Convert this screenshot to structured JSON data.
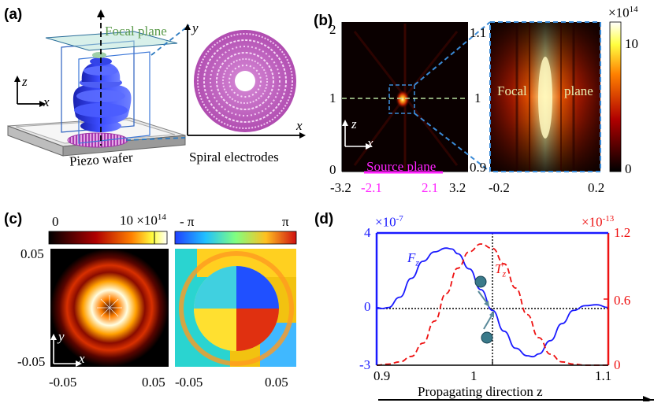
{
  "figure": {
    "panel_labels": [
      "(a)",
      "(b)",
      "(c)",
      "(d)"
    ]
  },
  "panel_a": {
    "focal_plane_label": "Focal plane",
    "wafer_label": "Piezo wafer",
    "electrodes_label": "Spiral electrodes",
    "axis_z": "z",
    "axis_x": "x",
    "axis_y": "y",
    "inset_axis_x": "x",
    "colors": {
      "beam": "#2f3cf5",
      "electrodes": "#c060c0",
      "plane": "#9fd5c8"
    }
  },
  "panel_b": {
    "colorbar_title": "×10",
    "colorbar_exp": "14",
    "colorbar_ticks": [
      "10",
      "0"
    ],
    "left_y_ticks": [
      "2",
      "1",
      "0"
    ],
    "right_y_ticks": [
      "1.1",
      "1",
      "0.9"
    ],
    "left_x_ticks": [
      "-3.2",
      "-2.1",
      "2.1",
      "3.2"
    ],
    "right_x_ticks": [
      "-0.2",
      "0.2"
    ],
    "source_plane_label": "Source plane",
    "focal_label_1": "Focal",
    "focal_label_2": "plane",
    "axis_z": "z",
    "axis_x": "x",
    "colors": {
      "source": "#ff22ff",
      "focal_line": "#b8e0a0",
      "zoom_box": "#3a8ad6"
    }
  },
  "panel_c": {
    "left_colorbar_min": "0",
    "left_colorbar_max": "10 ×10",
    "left_colorbar_exp": "14",
    "right_colorbar_min": "- π",
    "right_colorbar_max": "π",
    "y_ticks": [
      "0.05",
      "-0.05"
    ],
    "left_x_ticks": [
      "-0.05",
      "0.05"
    ],
    "right_x_ticks": [
      "-0.05",
      "0.05"
    ],
    "axis_y": "y",
    "axis_x": "x"
  },
  "chart_data": {
    "type": "line",
    "title": "",
    "xlabel": "Propagating direction z",
    "x_ticks": [
      "0.9",
      "1",
      "1.1"
    ],
    "xlim": [
      0.9,
      1.1
    ],
    "left_axis": {
      "scale_label": "×10",
      "scale_exp": "-7",
      "ticks": [
        "4",
        "0",
        "-3"
      ],
      "ylim": [
        -3,
        4
      ],
      "color": "#1a1aff"
    },
    "right_axis": {
      "scale_label": "×10",
      "scale_exp": "-13",
      "ticks": [
        "1.2",
        "0.6",
        "0"
      ],
      "ylim": [
        0,
        1.2
      ],
      "color": "#ee1111"
    },
    "series": [
      {
        "name": "F",
        "subscript": "z",
        "axis": "left",
        "style": "solid",
        "x": [
          0.9,
          0.905,
          0.91,
          0.92,
          0.93,
          0.94,
          0.95,
          0.96,
          0.965,
          0.97,
          0.98,
          0.99,
          1.0,
          1.01,
          1.02,
          1.03,
          1.035,
          1.04,
          1.05,
          1.06,
          1.07,
          1.08,
          1.09,
          1.1
        ],
        "values": [
          0.05,
          0.0,
          0.05,
          0.6,
          1.6,
          2.5,
          3.0,
          3.2,
          3.15,
          2.9,
          2.1,
          1.0,
          -0.1,
          -1.2,
          -2.1,
          -2.5,
          -2.55,
          -2.4,
          -1.7,
          -0.8,
          -0.1,
          0.15,
          0.2,
          0.05
        ]
      },
      {
        "name": "T",
        "subscript": "z",
        "axis": "right",
        "style": "dashed",
        "x": [
          0.9,
          0.91,
          0.92,
          0.93,
          0.94,
          0.95,
          0.96,
          0.97,
          0.98,
          0.99,
          1.0,
          1.01,
          1.02,
          1.03,
          1.04,
          1.05,
          1.06,
          1.07,
          1.08,
          1.09,
          1.1
        ],
        "values": [
          0.0,
          0.01,
          0.03,
          0.08,
          0.2,
          0.4,
          0.65,
          0.88,
          1.03,
          1.1,
          1.06,
          0.92,
          0.7,
          0.46,
          0.25,
          0.1,
          0.03,
          0.01,
          0.0,
          0.0,
          0.0
        ]
      }
    ],
    "reference_lines": {
      "horizontal_y": 0,
      "vertical_x": 1.0
    }
  }
}
